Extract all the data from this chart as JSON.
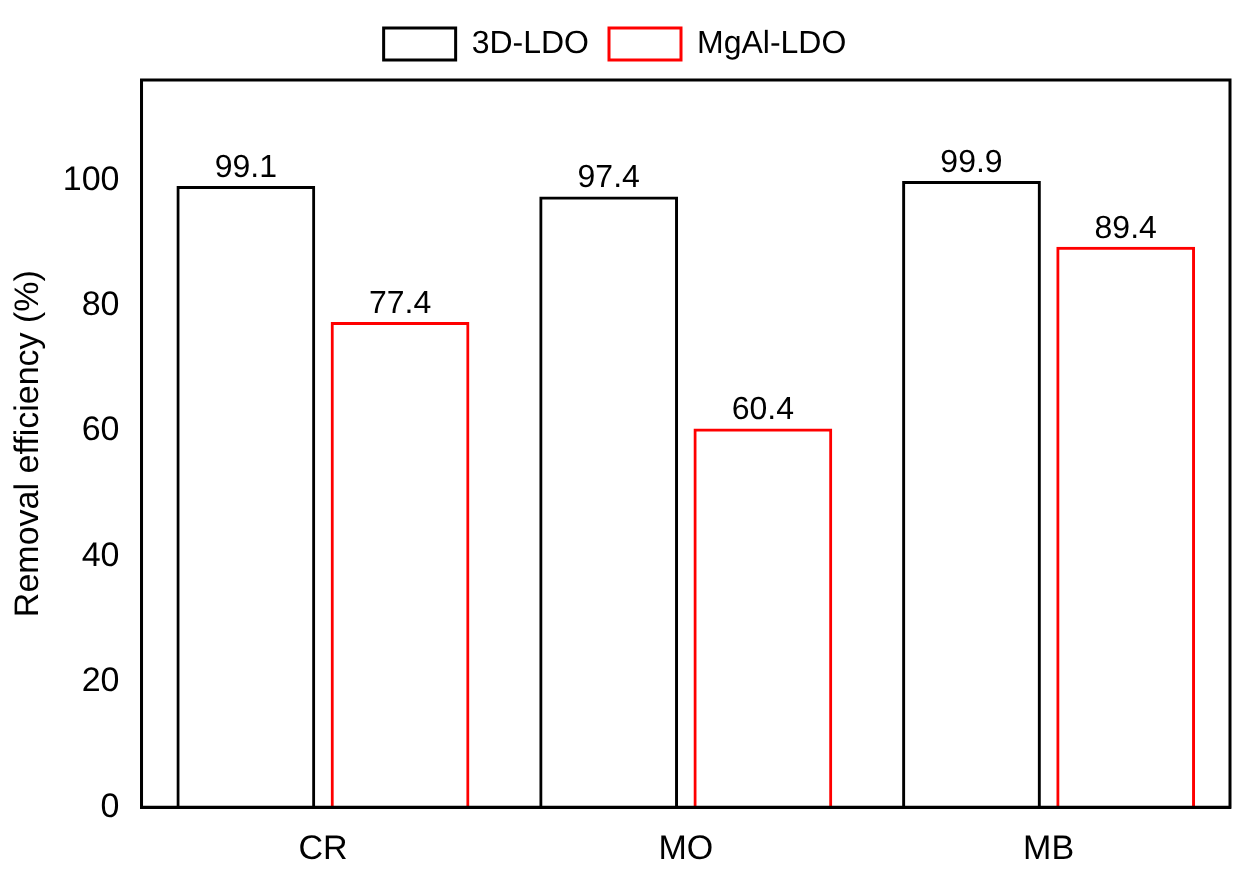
{
  "chart_data": {
    "type": "bar",
    "ylabel": "Removal efficiency (%)",
    "categories": [
      "CR",
      "MO",
      "MB"
    ],
    "series": [
      {
        "name": "3D-LDO",
        "color": "#000000",
        "values": [
          99.1,
          97.4,
          99.9
        ]
      },
      {
        "name": "MgAl-LDO",
        "color": "#ff0000",
        "values": [
          77.4,
          60.4,
          89.4
        ]
      }
    ],
    "ylim": [
      0,
      116
    ],
    "yticks": [
      0,
      20,
      40,
      60,
      80,
      100
    ],
    "grid": false,
    "legend": "top",
    "data_labels": true
  }
}
